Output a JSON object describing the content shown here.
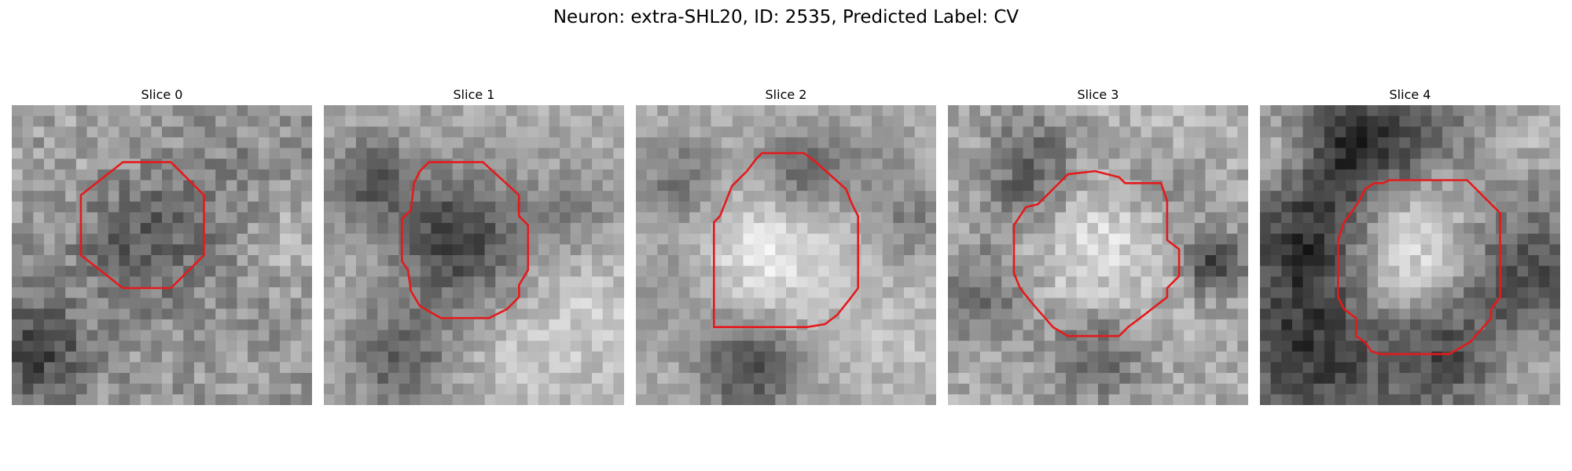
{
  "figure": {
    "title": "Neuron: extra-SHL20, ID: 2535, Predicted Label: CV"
  },
  "contour_color": "#e41a1c",
  "slices": [
    {
      "title": "Slice 0"
    },
    {
      "title": "Slice 1"
    },
    {
      "title": "Slice 2"
    },
    {
      "title": "Slice 3"
    },
    {
      "title": "Slice 4"
    }
  ]
}
